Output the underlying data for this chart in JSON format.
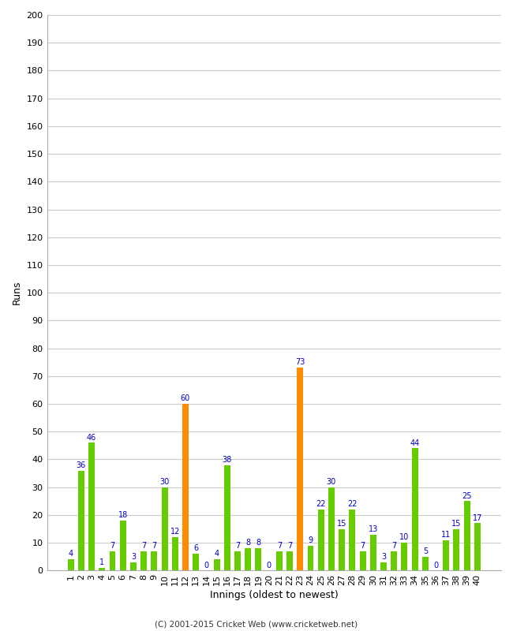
{
  "title": "",
  "xlabel": "Innings (oldest to newest)",
  "ylabel": "Runs",
  "ylim": [
    0,
    200
  ],
  "yticks": [
    0,
    10,
    20,
    30,
    40,
    50,
    60,
    70,
    80,
    90,
    100,
    110,
    120,
    130,
    140,
    150,
    160,
    170,
    180,
    190,
    200
  ],
  "innings": [
    1,
    2,
    3,
    4,
    5,
    6,
    7,
    8,
    9,
    10,
    11,
    12,
    13,
    14,
    15,
    16,
    17,
    18,
    19,
    20,
    21,
    22,
    23,
    24,
    25,
    26,
    27,
    28,
    29,
    30,
    31,
    32,
    33,
    34,
    35,
    36,
    37,
    38,
    39,
    40
  ],
  "values": [
    4,
    36,
    46,
    1,
    7,
    18,
    3,
    7,
    7,
    30,
    12,
    60,
    6,
    0,
    4,
    38,
    7,
    8,
    8,
    0,
    7,
    7,
    73,
    9,
    22,
    30,
    15,
    22,
    7,
    13,
    3,
    7,
    10,
    44,
    5,
    0,
    11,
    15,
    25,
    17
  ],
  "colors": [
    "#66cc00",
    "#66cc00",
    "#66cc00",
    "#66cc00",
    "#66cc00",
    "#66cc00",
    "#66cc00",
    "#66cc00",
    "#66cc00",
    "#66cc00",
    "#66cc00",
    "#ff8c00",
    "#66cc00",
    "#66cc00",
    "#66cc00",
    "#66cc00",
    "#66cc00",
    "#66cc00",
    "#66cc00",
    "#66cc00",
    "#66cc00",
    "#66cc00",
    "#ff8c00",
    "#66cc00",
    "#66cc00",
    "#66cc00",
    "#66cc00",
    "#66cc00",
    "#66cc00",
    "#66cc00",
    "#66cc00",
    "#66cc00",
    "#66cc00",
    "#66cc00",
    "#66cc00",
    "#66cc00",
    "#66cc00",
    "#66cc00",
    "#66cc00",
    "#66cc00"
  ],
  "label_color": "#0000cc",
  "label_fontsize": 7,
  "axis_tick_fontsize": 8,
  "axis_label_fontsize": 9,
  "bg_color": "#ffffff",
  "grid_color": "#cccccc",
  "footer": "(C) 2001-2015 Cricket Web (www.cricketweb.net)",
  "bar_width": 0.6
}
